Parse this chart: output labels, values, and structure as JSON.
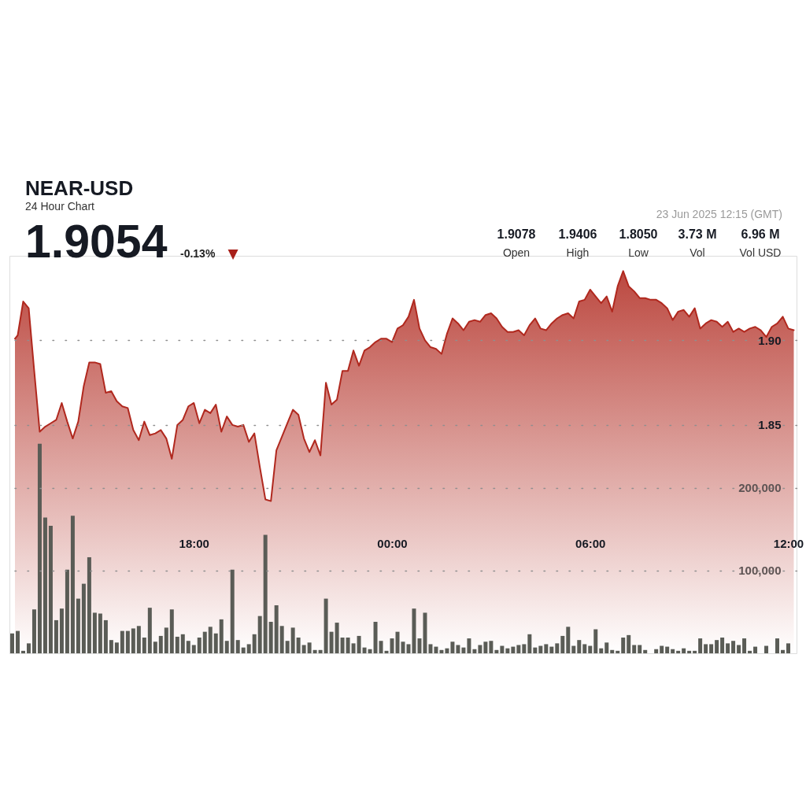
{
  "chart_data": {
    "type": "area",
    "title": "NEAR-USD",
    "subtitle": "24 Hour Chart",
    "annotations": [
      "1.9054",
      "-0.13%",
      "▼",
      "23 Jun 2025 12:15 (GMT)",
      "1.9078",
      "Open",
      "1.9406",
      "High",
      "1.8050",
      "Low",
      "3.73 M",
      "Vol",
      "6.96 M",
      "Vol USD"
    ],
    "xlim": [
      "2025-06-22T12:25",
      "2025-06-23T12:15"
    ],
    "xticks": [
      {
        "value": "2025-06-22T18:00",
        "label": "18:00"
      },
      {
        "value": "2025-06-23T00:00",
        "label": "00:00"
      },
      {
        "value": "2025-06-23T06:00",
        "label": "06:00"
      },
      {
        "value": "2025-06-23T12:00",
        "label": "12:00"
      }
    ],
    "ylim": [
      1.715,
      1.95
    ],
    "yticks": [
      1.85,
      {
        "value": 1.9,
        "label": "1.90"
      }
    ],
    "y2lim": [
      0,
      480000
    ],
    "y2ticks": [
      {
        "value": 100000,
        "label": "100,000"
      },
      {
        "value": 200000,
        "label": "200,000"
      }
    ],
    "grid": "y",
    "series": [
      {
        "color": "#b0281e",
        "x": [
          "2025-06-22T12:35",
          "2025-06-22T12:40",
          "2025-06-22T12:50",
          "2025-06-22T13:00",
          "2025-06-22T13:10",
          "2025-06-22T13:20",
          "2025-06-22T13:30",
          "2025-06-22T13:40",
          "2025-06-22T13:50",
          "2025-06-22T14:00",
          "2025-06-22T14:10",
          "2025-06-22T14:20",
          "2025-06-22T14:30",
          "2025-06-22T14:40",
          "2025-06-22T14:50",
          "2025-06-22T15:00",
          "2025-06-22T15:10",
          "2025-06-22T15:20",
          "2025-06-22T15:30",
          "2025-06-22T15:40",
          "2025-06-22T15:50",
          "2025-06-22T16:00",
          "2025-06-22T16:10",
          "2025-06-22T16:20",
          "2025-06-22T16:30",
          "2025-06-22T16:40",
          "2025-06-22T16:50",
          "2025-06-22T17:00",
          "2025-06-22T17:10",
          "2025-06-22T17:20",
          "2025-06-22T17:30",
          "2025-06-22T17:40",
          "2025-06-22T17:50",
          "2025-06-22T18:00",
          "2025-06-22T18:10",
          "2025-06-22T18:20",
          "2025-06-22T18:30",
          "2025-06-22T18:40",
          "2025-06-22T18:50",
          "2025-06-22T19:00",
          "2025-06-22T19:10",
          "2025-06-22T19:20",
          "2025-06-22T19:30",
          "2025-06-22T19:40",
          "2025-06-22T19:50",
          "2025-06-22T20:00",
          "2025-06-22T20:10",
          "2025-06-22T20:20",
          "2025-06-22T20:30",
          "2025-06-22T20:40",
          "2025-06-22T20:50",
          "2025-06-22T21:00",
          "2025-06-22T21:10",
          "2025-06-22T21:20",
          "2025-06-22T21:30",
          "2025-06-22T21:40",
          "2025-06-22T21:50",
          "2025-06-22T22:00",
          "2025-06-22T22:10",
          "2025-06-22T22:20",
          "2025-06-22T22:30",
          "2025-06-22T22:40",
          "2025-06-22T22:50",
          "2025-06-22T23:00",
          "2025-06-22T23:10",
          "2025-06-22T23:20",
          "2025-06-22T23:30",
          "2025-06-22T23:40",
          "2025-06-22T23:50",
          "2025-06-23T00:00",
          "2025-06-23T00:10",
          "2025-06-23T00:20",
          "2025-06-23T00:30",
          "2025-06-23T00:40",
          "2025-06-23T00:50",
          "2025-06-23T01:00",
          "2025-06-23T01:10",
          "2025-06-23T01:20",
          "2025-06-23T01:30",
          "2025-06-23T01:40",
          "2025-06-23T01:50",
          "2025-06-23T02:00",
          "2025-06-23T02:10",
          "2025-06-23T02:20",
          "2025-06-23T02:30",
          "2025-06-23T02:40",
          "2025-06-23T02:50",
          "2025-06-23T03:00",
          "2025-06-23T03:10",
          "2025-06-23T03:20",
          "2025-06-23T03:30",
          "2025-06-23T03:40",
          "2025-06-23T03:50",
          "2025-06-23T04:00",
          "2025-06-23T04:10",
          "2025-06-23T04:20",
          "2025-06-23T04:30",
          "2025-06-23T04:40",
          "2025-06-23T04:50",
          "2025-06-23T05:00",
          "2025-06-23T05:10",
          "2025-06-23T05:20",
          "2025-06-23T05:30",
          "2025-06-23T05:40",
          "2025-06-23T05:50",
          "2025-06-23T06:00",
          "2025-06-23T06:10",
          "2025-06-23T06:20",
          "2025-06-23T06:30",
          "2025-06-23T06:40",
          "2025-06-23T06:50",
          "2025-06-23T07:00",
          "2025-06-23T07:10",
          "2025-06-23T07:20",
          "2025-06-23T07:30",
          "2025-06-23T07:40",
          "2025-06-23T07:50",
          "2025-06-23T08:00",
          "2025-06-23T08:10",
          "2025-06-23T08:20",
          "2025-06-23T08:30",
          "2025-06-23T08:40",
          "2025-06-23T08:50",
          "2025-06-23T09:00",
          "2025-06-23T09:10",
          "2025-06-23T09:20",
          "2025-06-23T09:30",
          "2025-06-23T09:40",
          "2025-06-23T09:50",
          "2025-06-23T10:00",
          "2025-06-23T10:10",
          "2025-06-23T10:20",
          "2025-06-23T10:30",
          "2025-06-23T10:40",
          "2025-06-23T10:50",
          "2025-06-23T11:00",
          "2025-06-23T11:10",
          "2025-06-23T11:20",
          "2025-06-23T11:30",
          "2025-06-23T11:40",
          "2025-06-23T11:50",
          "2025-06-23T12:00",
          "2025-06-23T12:10"
        ],
        "values": [
          1.901,
          1.903,
          1.923,
          1.919,
          1.882,
          1.846,
          1.849,
          1.851,
          1.853,
          1.863,
          1.852,
          1.842,
          1.852,
          1.873,
          1.887,
          1.887,
          1.886,
          1.869,
          1.87,
          1.864,
          1.861,
          1.86,
          1.847,
          1.841,
          1.852,
          1.844,
          1.845,
          1.847,
          1.842,
          1.83,
          1.85,
          1.853,
          1.861,
          1.863,
          1.851,
          1.859,
          1.857,
          1.862,
          1.846,
          1.855,
          1.85,
          1.849,
          1.85,
          1.84,
          1.845,
          1.825,
          1.806,
          1.805,
          1.835,
          1.843,
          1.851,
          1.859,
          1.856,
          1.842,
          1.834,
          1.841,
          1.832,
          1.875,
          1.862,
          1.865,
          1.882,
          1.882,
          1.894,
          1.885,
          1.894,
          1.896,
          1.899,
          1.901,
          1.901,
          1.899,
          1.907,
          1.909,
          1.914,
          1.924,
          1.907,
          1.9,
          1.896,
          1.895,
          1.892,
          1.904,
          1.913,
          1.91,
          1.906,
          1.911,
          1.912,
          1.911,
          1.915,
          1.916,
          1.913,
          1.908,
          1.905,
          1.905,
          1.906,
          1.903,
          1.909,
          1.913,
          1.907,
          1.906,
          1.91,
          1.913,
          1.915,
          1.916,
          1.913,
          1.923,
          1.924,
          1.93,
          1.926,
          1.922,
          1.926,
          1.917,
          1.932,
          1.941,
          1.932,
          1.929,
          1.925,
          1.925,
          1.924,
          1.924,
          1.922,
          1.919,
          1.912,
          1.917,
          1.918,
          1.914,
          1.919,
          1.907,
          1.91,
          1.912,
          1.911,
          1.908,
          1.911,
          1.905,
          1.907,
          1.905,
          1.907,
          1.908,
          1.906,
          1.902,
          1.908,
          1.91,
          1.914,
          1.907,
          1.906
        ]
      },
      {
        "type": "bar",
        "axis": "y2",
        "color": "#5a5c56",
        "x": [
          "2025-06-22T12:30",
          "2025-06-22T12:40",
          "2025-06-22T12:50",
          "2025-06-22T13:00",
          "2025-06-22T13:10",
          "2025-06-22T13:20",
          "2025-06-22T13:30",
          "2025-06-22T13:40",
          "2025-06-22T13:50",
          "2025-06-22T14:00",
          "2025-06-22T14:10",
          "2025-06-22T14:20",
          "2025-06-22T14:30",
          "2025-06-22T14:40",
          "2025-06-22T14:50",
          "2025-06-22T15:00",
          "2025-06-22T15:10",
          "2025-06-22T15:20",
          "2025-06-22T15:30",
          "2025-06-22T15:40",
          "2025-06-22T15:50",
          "2025-06-22T16:00",
          "2025-06-22T16:10",
          "2025-06-22T16:20",
          "2025-06-22T16:30",
          "2025-06-22T16:40",
          "2025-06-22T16:50",
          "2025-06-22T17:00",
          "2025-06-22T17:10",
          "2025-06-22T17:20",
          "2025-06-22T17:30",
          "2025-06-22T17:40",
          "2025-06-22T17:50",
          "2025-06-22T18:00",
          "2025-06-22T18:10",
          "2025-06-22T18:20",
          "2025-06-22T18:30",
          "2025-06-22T18:40",
          "2025-06-22T18:50",
          "2025-06-22T19:00",
          "2025-06-22T19:10",
          "2025-06-22T19:20",
          "2025-06-22T19:30",
          "2025-06-22T19:40",
          "2025-06-22T19:50",
          "2025-06-22T20:00",
          "2025-06-22T20:10",
          "2025-06-22T20:20",
          "2025-06-22T20:30",
          "2025-06-22T20:40",
          "2025-06-22T20:50",
          "2025-06-22T21:00",
          "2025-06-22T21:10",
          "2025-06-22T21:20",
          "2025-06-22T21:30",
          "2025-06-22T21:40",
          "2025-06-22T21:50",
          "2025-06-22T22:00",
          "2025-06-22T22:10",
          "2025-06-22T22:20",
          "2025-06-22T22:30",
          "2025-06-22T22:40",
          "2025-06-22T22:50",
          "2025-06-22T23:00",
          "2025-06-22T23:10",
          "2025-06-22T23:20",
          "2025-06-22T23:30",
          "2025-06-22T23:40",
          "2025-06-22T23:50",
          "2025-06-23T00:00",
          "2025-06-23T00:10",
          "2025-06-23T00:20",
          "2025-06-23T00:30",
          "2025-06-23T00:40",
          "2025-06-23T00:50",
          "2025-06-23T01:00",
          "2025-06-23T01:10",
          "2025-06-23T01:20",
          "2025-06-23T01:30",
          "2025-06-23T01:40",
          "2025-06-23T01:50",
          "2025-06-23T02:00",
          "2025-06-23T02:10",
          "2025-06-23T02:20",
          "2025-06-23T02:30",
          "2025-06-23T02:40",
          "2025-06-23T02:50",
          "2025-06-23T03:00",
          "2025-06-23T03:10",
          "2025-06-23T03:20",
          "2025-06-23T03:30",
          "2025-06-23T03:40",
          "2025-06-23T03:50",
          "2025-06-23T04:00",
          "2025-06-23T04:10",
          "2025-06-23T04:20",
          "2025-06-23T04:30",
          "2025-06-23T04:40",
          "2025-06-23T04:50",
          "2025-06-23T05:00",
          "2025-06-23T05:10",
          "2025-06-23T05:20",
          "2025-06-23T05:30",
          "2025-06-23T05:40",
          "2025-06-23T05:50",
          "2025-06-23T06:00",
          "2025-06-23T06:10",
          "2025-06-23T06:20",
          "2025-06-23T06:30",
          "2025-06-23T06:40",
          "2025-06-23T06:50",
          "2025-06-23T07:00",
          "2025-06-23T07:10",
          "2025-06-23T07:20",
          "2025-06-23T07:30",
          "2025-06-23T07:40",
          "2025-06-23T07:50",
          "2025-06-23T08:00",
          "2025-06-23T08:10",
          "2025-06-23T08:20",
          "2025-06-23T08:30",
          "2025-06-23T08:40",
          "2025-06-23T08:50",
          "2025-06-23T09:00",
          "2025-06-23T09:10",
          "2025-06-23T09:20",
          "2025-06-23T09:30",
          "2025-06-23T09:40",
          "2025-06-23T09:50",
          "2025-06-23T10:00",
          "2025-06-23T10:10",
          "2025-06-23T10:20",
          "2025-06-23T10:30",
          "2025-06-23T10:40",
          "2025-06-23T10:50",
          "2025-06-23T11:00",
          "2025-06-23T11:10",
          "2025-06-23T11:20",
          "2025-06-23T11:30",
          "2025-06-23T11:40",
          "2025-06-23T11:50",
          "2025-06-23T12:00"
        ],
        "values": [
          24000,
          27000,
          3000,
          12000,
          53000,
          253000,
          164000,
          154000,
          40000,
          54000,
          101000,
          166000,
          66000,
          84000,
          116000,
          49000,
          48000,
          40000,
          16000,
          13000,
          27000,
          27000,
          30000,
          33000,
          19000,
          55000,
          14000,
          21000,
          31000,
          53000,
          20000,
          23000,
          15000,
          10000,
          19000,
          26000,
          32000,
          24000,
          41000,
          15000,
          101000,
          16000,
          7000,
          11000,
          23000,
          45000,
          143000,
          38000,
          58000,
          33000,
          15000,
          31000,
          19000,
          10000,
          13000,
          4000,
          4000,
          66000,
          26000,
          37000,
          19000,
          19000,
          12000,
          21000,
          7000,
          5000,
          38000,
          15000,
          3000,
          18000,
          26000,
          14000,
          11000,
          54000,
          18000,
          49000,
          11000,
          8000,
          4000,
          6000,
          14000,
          10000,
          7000,
          18000,
          5000,
          10000,
          14000,
          15000,
          4000,
          9000,
          6000,
          8000,
          10000,
          11000,
          23000,
          7000,
          9000,
          11000,
          8000,
          12000,
          21000,
          32000,
          9000,
          16000,
          11000,
          9000,
          29000,
          6000,
          13000,
          4000,
          3000,
          19000,
          22000,
          10000,
          10000,
          4000,
          null,
          5000,
          9000,
          8000,
          5000,
          3000,
          6000,
          3000,
          3000,
          18000,
          11000,
          11000,
          16000,
          19000,
          12000,
          15000,
          10000,
          18000,
          3000,
          8000,
          null,
          9000,
          null,
          18000,
          4000,
          12000
        ]
      }
    ]
  }
}
